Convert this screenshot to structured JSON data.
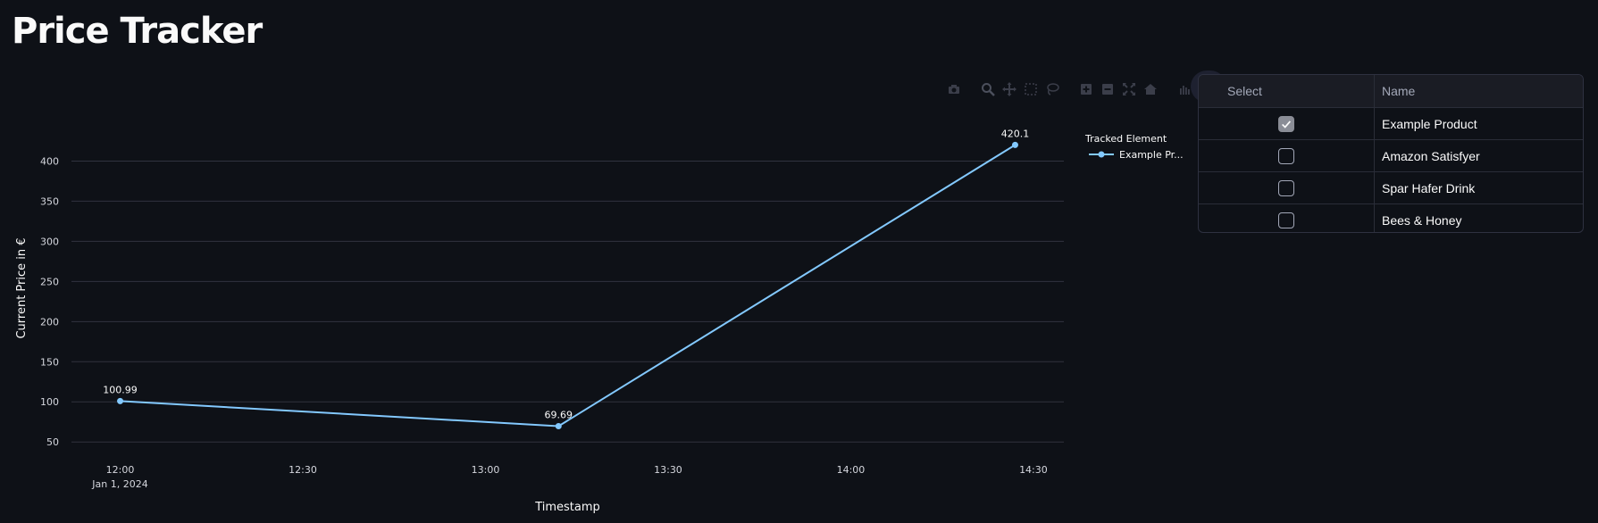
{
  "page": {
    "title": "Price Tracker"
  },
  "colors": {
    "background": "#0e1117",
    "series": "#83c9ff",
    "grid": "#31333f",
    "text": "#fafafa"
  },
  "toolbar": {
    "icons": [
      "camera-icon",
      "zoom-icon",
      "pan-icon",
      "box-select-icon",
      "lasso-select-icon",
      "zoom-in-icon",
      "zoom-out-icon",
      "autoscale-icon",
      "reset-axes-icon",
      "plotly-logo-icon"
    ]
  },
  "chart_data": {
    "type": "line",
    "title": "",
    "xlabel": "Timestamp",
    "ylabel": "Current Price in €",
    "x_ticks": [
      "12:00",
      "12:30",
      "13:00",
      "13:30",
      "14:00",
      "14:30"
    ],
    "x_tick_sub": "Jan 1, 2024",
    "x_range": [
      "2024-01-01 11:52",
      "2024-01-01 14:35"
    ],
    "ylim": [
      38,
      445
    ],
    "y_ticks": [
      50,
      100,
      150,
      200,
      250,
      300,
      350,
      400
    ],
    "grid": true,
    "legend_title": "Tracked Element",
    "legend_position": "right",
    "series": [
      {
        "name": "Example Pr...",
        "x": [
          "2024-01-01 12:00",
          "2024-01-01 13:12",
          "2024-01-01 14:27"
        ],
        "y": [
          100.99,
          69.69,
          420.1
        ],
        "labels": [
          "100.99",
          "69.69",
          "420.1"
        ]
      }
    ]
  },
  "table": {
    "headers": {
      "select": "Select",
      "name": "Name"
    },
    "rows": [
      {
        "selected": true,
        "name": "Example Product"
      },
      {
        "selected": false,
        "name": "Amazon Satisfyer"
      },
      {
        "selected": false,
        "name": "Spar Hafer Drink"
      },
      {
        "selected": false,
        "name": "Bees & Honey"
      }
    ]
  }
}
